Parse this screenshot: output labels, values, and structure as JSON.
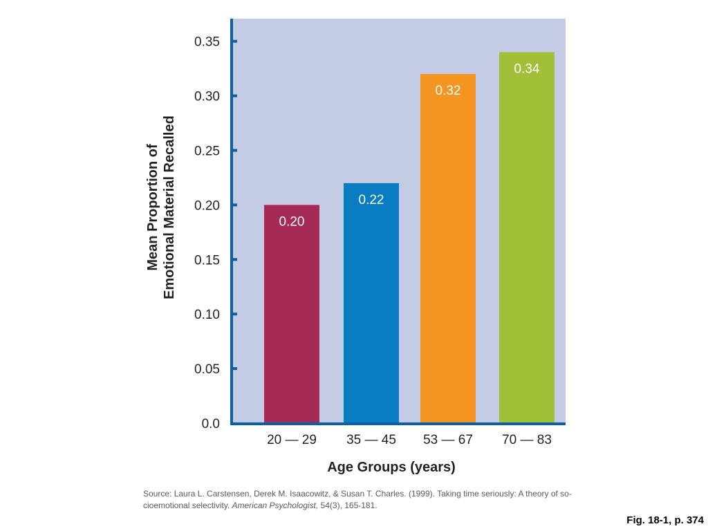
{
  "chart_data": {
    "type": "bar",
    "categories": [
      "20 — 29",
      "35 — 45",
      "53 — 67",
      "70 — 83"
    ],
    "values": [
      0.2,
      0.22,
      0.32,
      0.34
    ],
    "value_labels": [
      "0.20",
      "0.22",
      "0.32",
      "0.34"
    ],
    "bar_colors": [
      "#a52a55",
      "#0a7cc1",
      "#f49421",
      "#a2c037"
    ],
    "xlabel": "Age Groups (years)",
    "ylabel_lines": [
      "Mean Proportion of",
      "Emotional Material Recalled"
    ],
    "ylim": [
      0,
      0.37
    ],
    "yticks": [
      0.0,
      0.05,
      0.1,
      0.15,
      0.2,
      0.25,
      0.3,
      0.35
    ],
    "ytick_labels": [
      "0.0",
      "0.05",
      "0.10",
      "0.15",
      "0.20",
      "0.25",
      "0.30",
      "0.35"
    ],
    "grid": false,
    "legend": "none",
    "colors": {
      "plot_background": "#c3cce4",
      "axis": "#0b5fa5"
    }
  },
  "source": {
    "text_before": "Source: Laura L. Carstensen, Derek M. Isaacowitz, & Susan T. Charles. (1999). Taking time seriously: A theory of so-cioemotional selectivity. ",
    "journal": "American Psychologist,",
    "text_after": " 54(3), 165-181."
  },
  "figure_ref": "Fig. 18-1, p. 374"
}
